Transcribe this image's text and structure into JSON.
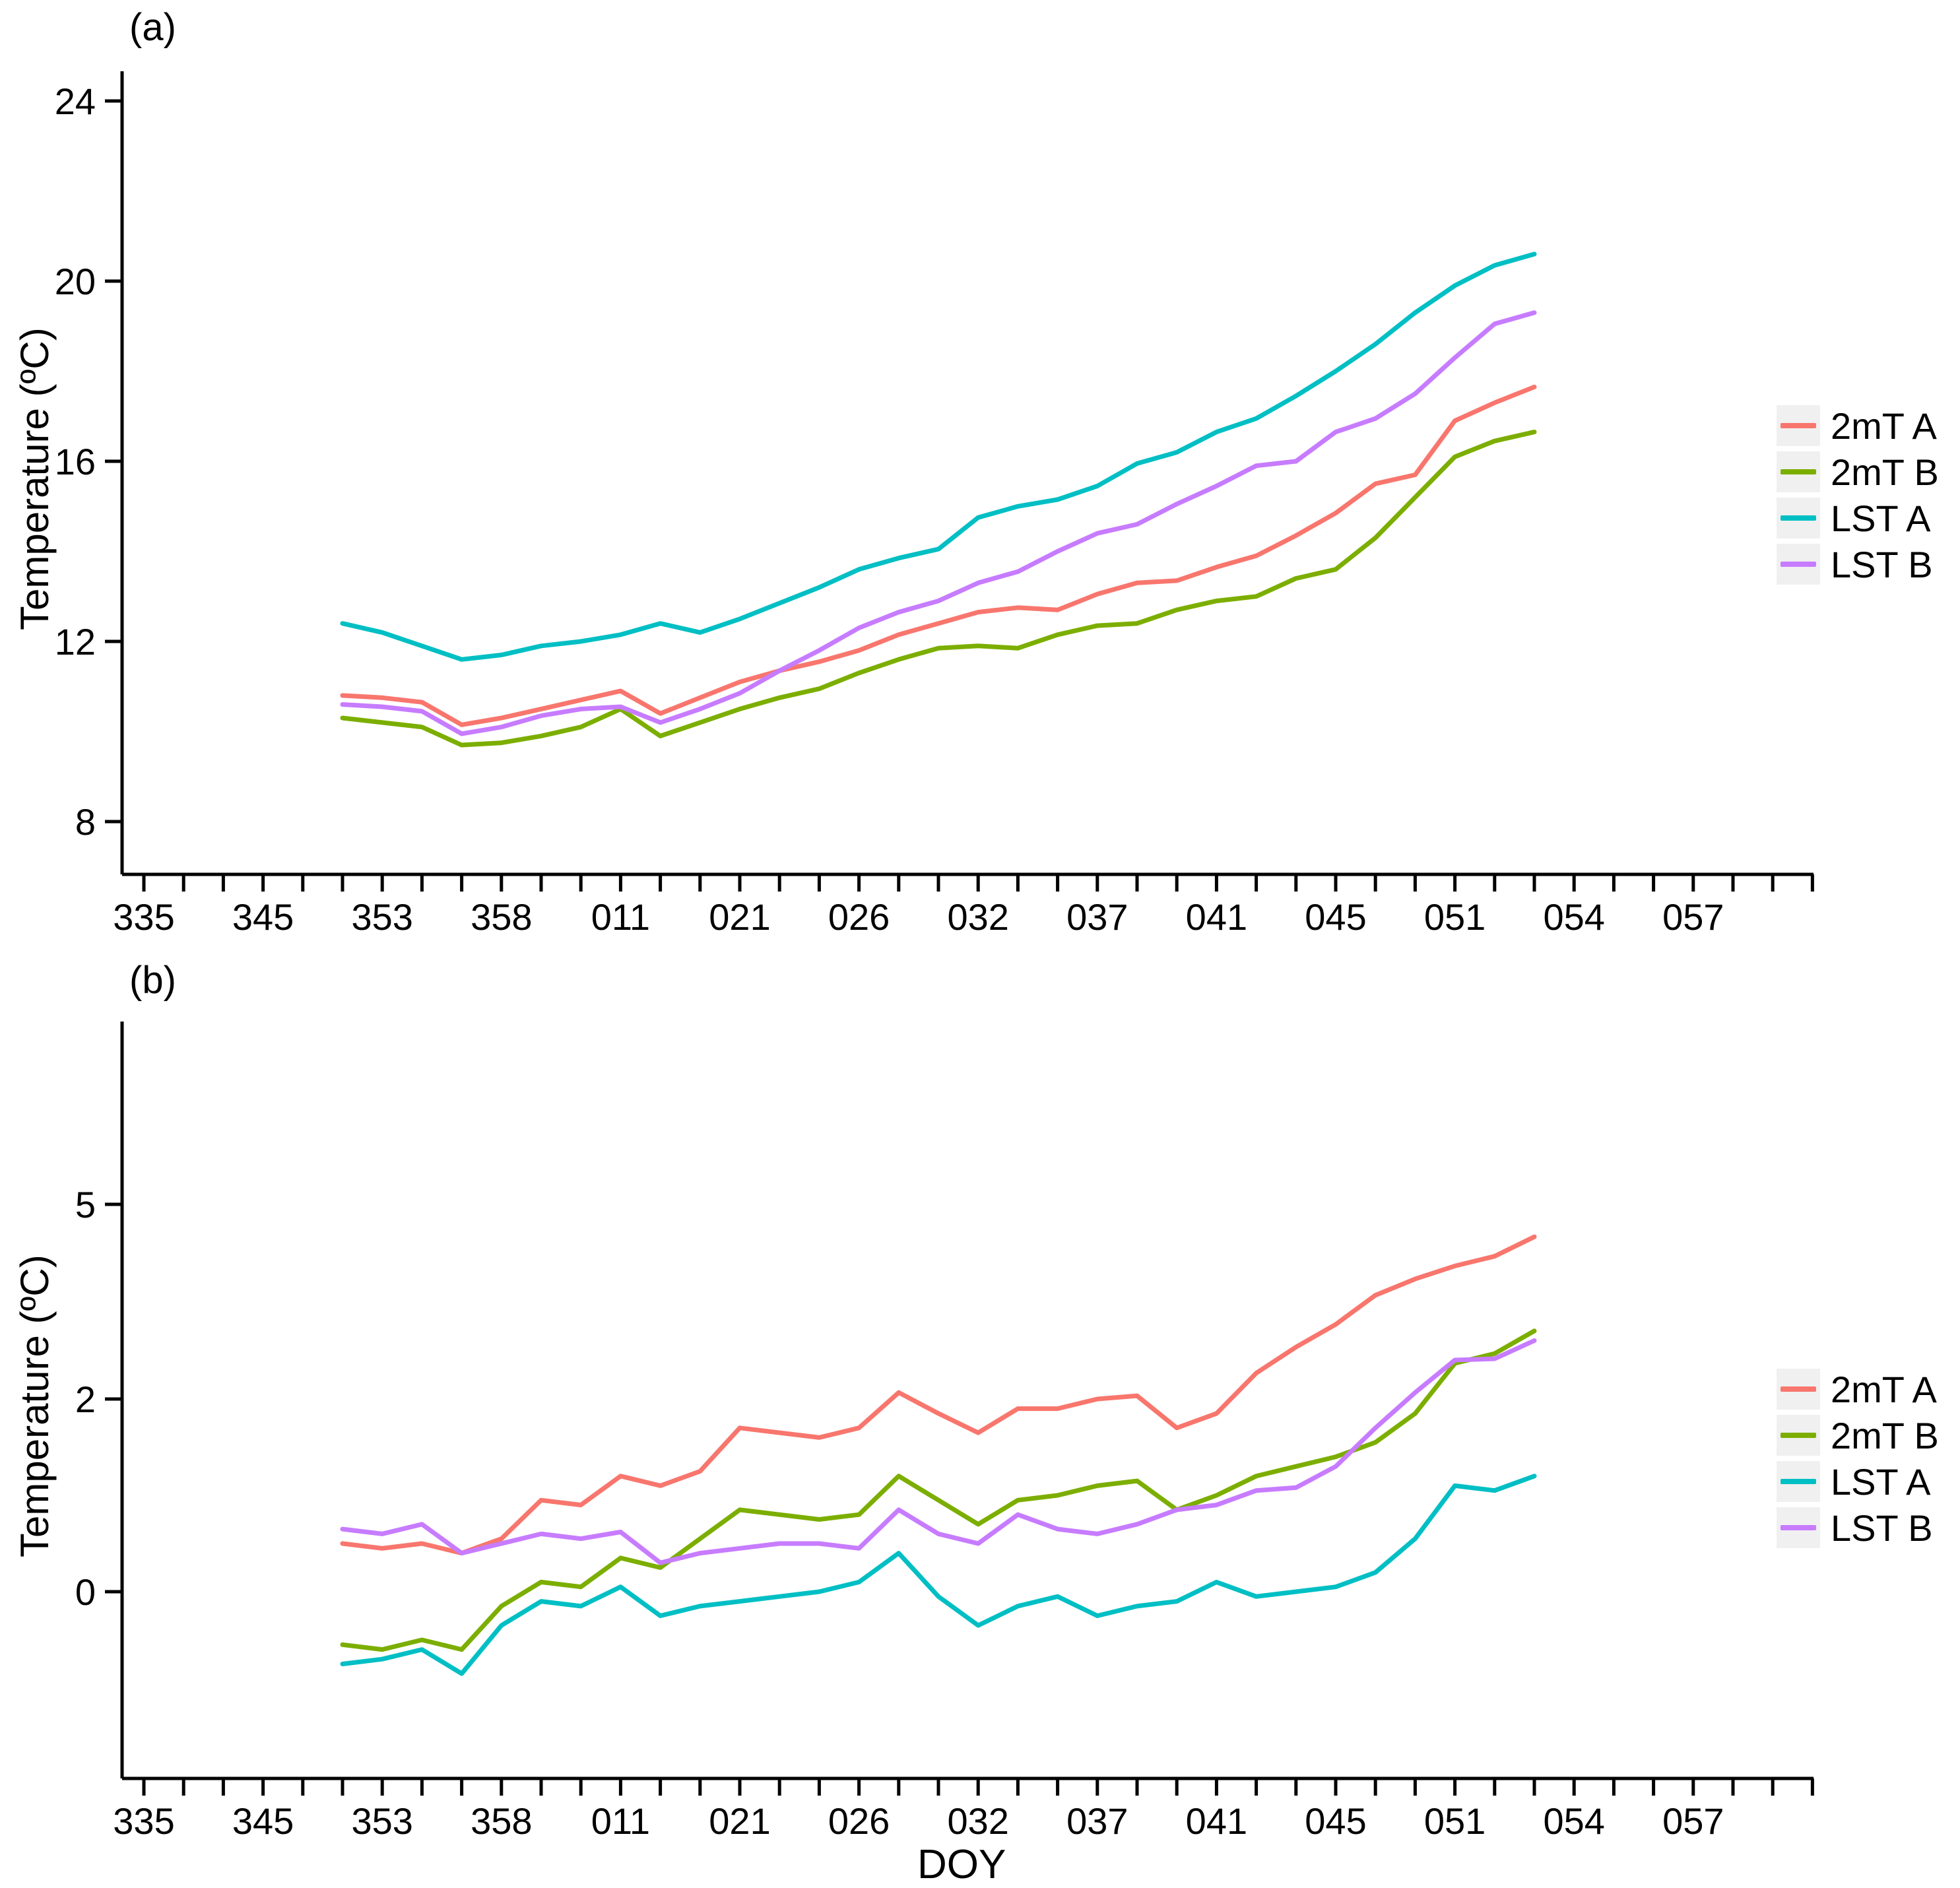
{
  "figure": {
    "panel_a_tag": "(a)",
    "panel_b_tag": "(b)",
    "y_axis_title": "Temperature (ºC)",
    "x_axis_title": "DOY"
  },
  "legend": {
    "items": [
      {
        "label": "2mT A",
        "color": "#F8766D"
      },
      {
        "label": "2mT B",
        "color": "#7CAE00"
      },
      {
        "label": "LST A",
        "color": "#00BFC4"
      },
      {
        "label": "LST B",
        "color": "#C77CFF"
      }
    ],
    "key_background": "#F0F0F0",
    "position": "right"
  },
  "chart_data": [
    {
      "panel": "a",
      "type": "line",
      "title": "(a)",
      "xlabel": "DOY",
      "ylabel": "Temperature (ºC)",
      "grid": false,
      "axis_color": "#000000",
      "y_ticks": [
        "24",
        "20",
        "16",
        "12",
        "8"
      ],
      "y_tick_values": [
        24,
        20,
        16,
        12,
        8
      ],
      "ylim_approx": [
        6.8,
        24.7
      ],
      "x_axis": {
        "labeled_ticks": [
          {
            "k": 0,
            "label": "335"
          },
          {
            "k": 3,
            "label": "345"
          },
          {
            "k": 6,
            "label": "353"
          },
          {
            "k": 9,
            "label": "358"
          },
          {
            "k": 12,
            "label": "011"
          },
          {
            "k": 15,
            "label": "021"
          },
          {
            "k": 18,
            "label": "026"
          },
          {
            "k": 21,
            "label": "032"
          },
          {
            "k": 24,
            "label": "037"
          },
          {
            "k": 27,
            "label": "041"
          },
          {
            "k": 30,
            "label": "045"
          },
          {
            "k": 33,
            "label": "051"
          },
          {
            "k": 36,
            "label": "054"
          },
          {
            "k": 39,
            "label": "057"
          }
        ],
        "n_ticks": 43,
        "data_first_tick": 5
      },
      "series": [
        {
          "name": "2mT A",
          "color": "#F8766D",
          "values": [
            10.8,
            10.75,
            10.65,
            10.15,
            10.3,
            10.5,
            10.7,
            10.9,
            10.4,
            10.75,
            11.1,
            11.35,
            11.55,
            11.8,
            12.15,
            12.4,
            12.65,
            12.75,
            12.7,
            13.05,
            13.3,
            13.35,
            13.65,
            13.9,
            14.35,
            14.85,
            15.5,
            15.7,
            16.9,
            17.3,
            17.65
          ]
        },
        {
          "name": "2mT B",
          "color": "#7CAE00",
          "values": [
            10.3,
            10.2,
            10.1,
            9.7,
            9.75,
            9.9,
            10.1,
            10.5,
            9.9,
            10.2,
            10.5,
            10.75,
            10.95,
            11.3,
            11.6,
            11.85,
            11.9,
            11.85,
            12.15,
            12.35,
            12.4,
            12.7,
            12.9,
            13.0,
            13.4,
            13.6,
            14.3,
            15.2,
            16.1,
            16.45,
            16.65
          ]
        },
        {
          "name": "LST A",
          "color": "#00BFC4",
          "values": [
            12.4,
            12.2,
            11.9,
            11.6,
            11.7,
            11.9,
            12.0,
            12.15,
            12.4,
            12.2,
            12.5,
            12.85,
            13.2,
            13.6,
            13.85,
            14.05,
            14.75,
            15.0,
            15.15,
            15.45,
            15.95,
            16.2,
            16.65,
            16.95,
            17.45,
            18.0,
            18.6,
            19.3,
            19.9,
            20.35,
            20.6
          ]
        },
        {
          "name": "LST B",
          "color": "#C77CFF",
          "values": [
            10.6,
            10.55,
            10.45,
            9.95,
            10.1,
            10.35,
            10.5,
            10.55,
            10.2,
            10.5,
            10.85,
            11.35,
            11.8,
            12.3,
            12.65,
            12.9,
            13.3,
            13.55,
            14.0,
            14.4,
            14.6,
            15.05,
            15.45,
            15.9,
            16.0,
            16.65,
            16.95,
            17.5,
            18.3,
            19.05,
            19.3
          ]
        }
      ],
      "pixel_map": {
        "axis_left_x": 185,
        "axis_right_x": 2748,
        "panel_top_y": 108,
        "axis_bottom_y": 1325,
        "x0": 218,
        "dx": 60.2,
        "y_anchors": [
          [
            8,
            1245
          ],
          [
            24,
            153
          ]
        ],
        "tick_length": 26,
        "axis_stroke": 5,
        "line_stroke": 7
      }
    },
    {
      "panel": "b",
      "type": "line",
      "title": "(b)",
      "xlabel": "DOY",
      "ylabel": "Temperature (ºC)",
      "grid": false,
      "axis_color": "#000000",
      "y_ticks": [
        "5",
        "2",
        "0"
      ],
      "y_tick_values": [
        5,
        2,
        0
      ],
      "ylim_approx": [
        -1.9,
        7.8
      ],
      "x_axis": {
        "labeled_ticks": [
          {
            "k": 0,
            "label": "335"
          },
          {
            "k": 3,
            "label": "345"
          },
          {
            "k": 6,
            "label": "353"
          },
          {
            "k": 9,
            "label": "358"
          },
          {
            "k": 12,
            "label": "011"
          },
          {
            "k": 15,
            "label": "021"
          },
          {
            "k": 18,
            "label": "026"
          },
          {
            "k": 21,
            "label": "032"
          },
          {
            "k": 24,
            "label": "037"
          },
          {
            "k": 27,
            "label": "041"
          },
          {
            "k": 30,
            "label": "045"
          },
          {
            "k": 33,
            "label": "051"
          },
          {
            "k": 36,
            "label": "054"
          },
          {
            "k": 39,
            "label": "057"
          }
        ],
        "n_ticks": 43,
        "data_first_tick": 5
      },
      "series": [
        {
          "name": "2mT A",
          "color": "#F8766D",
          "values": [
            0.5,
            0.45,
            0.5,
            0.4,
            0.55,
            0.95,
            0.9,
            1.2,
            1.1,
            1.25,
            1.7,
            1.65,
            1.6,
            1.7,
            2.1,
            1.85,
            1.65,
            1.9,
            1.9,
            2.0,
            2.05,
            1.7,
            1.85,
            2.4,
            2.8,
            3.15,
            3.6,
            3.85,
            4.05,
            4.2,
            4.5
          ]
        },
        {
          "name": "2mT B",
          "color": "#7CAE00",
          "values": [
            -0.55,
            -0.6,
            -0.5,
            -0.6,
            -0.15,
            0.1,
            0.05,
            0.35,
            0.25,
            0.55,
            0.85,
            0.8,
            0.75,
            0.8,
            1.2,
            0.95,
            0.7,
            0.95,
            1.0,
            1.1,
            1.15,
            0.85,
            1.0,
            1.2,
            1.3,
            1.4,
            1.55,
            1.85,
            2.55,
            2.7,
            3.05
          ]
        },
        {
          "name": "LST A",
          "color": "#00BFC4",
          "values": [
            -0.75,
            -0.7,
            -0.6,
            -0.85,
            -0.35,
            -0.1,
            -0.15,
            0.05,
            -0.25,
            -0.15,
            -0.1,
            -0.05,
            0.0,
            0.1,
            0.4,
            -0.05,
            -0.35,
            -0.15,
            -0.05,
            -0.25,
            -0.15,
            -0.1,
            0.1,
            -0.05,
            0.0,
            0.05,
            0.2,
            0.55,
            1.1,
            1.05,
            1.2
          ]
        },
        {
          "name": "LST B",
          "color": "#C77CFF",
          "values": [
            0.65,
            0.6,
            0.7,
            0.4,
            0.5,
            0.6,
            0.55,
            0.62,
            0.3,
            0.4,
            0.45,
            0.5,
            0.5,
            0.45,
            0.85,
            0.6,
            0.5,
            0.8,
            0.65,
            0.6,
            0.7,
            0.85,
            0.9,
            1.05,
            1.08,
            1.3,
            1.7,
            2.1,
            2.6,
            2.62,
            2.9
          ]
        }
      ],
      "pixel_map": {
        "axis_left_x": 185,
        "axis_right_x": 2748,
        "panel_top_y": 1548,
        "axis_bottom_y": 2695,
        "x0": 218,
        "dx": 60.2,
        "y_anchors": [
          [
            0,
            2412
          ],
          [
            2,
            2120
          ],
          [
            5,
            1825
          ]
        ],
        "tick_length": 26,
        "axis_stroke": 5,
        "line_stroke": 7
      }
    }
  ]
}
